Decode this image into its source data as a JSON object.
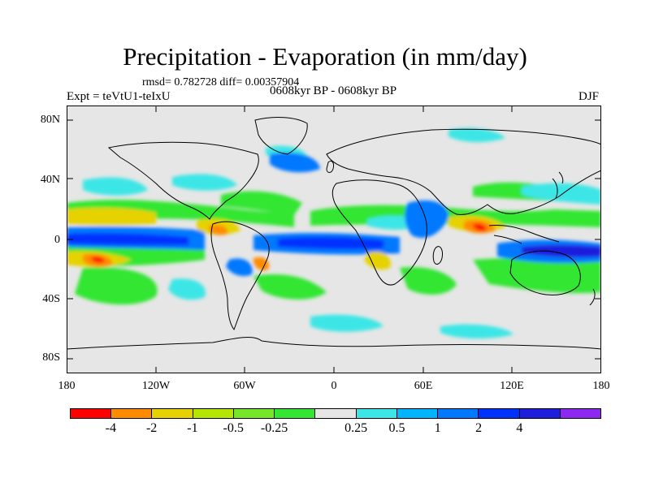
{
  "title": "Precipitation - Evaporation (in mm/day)",
  "stats": "rmsd= 0.782728 diff= 0.00357904",
  "period": "0608kyr BP - 0608kyr BP",
  "experiment": "Expt = teVtU1-teIxU",
  "season": "DJF",
  "map": {
    "y_ticks": [
      "80N",
      "40N",
      "0",
      "40S",
      "80S"
    ],
    "x_ticks": [
      "180",
      "120W",
      "60W",
      "0",
      "60E",
      "120E",
      "180"
    ],
    "background_color": "#e6e6e6",
    "coastline_color": "#000000"
  },
  "colorbar": {
    "colors": [
      "#ff0000",
      "#ff8c00",
      "#e6d200",
      "#b4e600",
      "#78e628",
      "#32e632",
      "#e6e6e6",
      "#3ce6e6",
      "#00b4ff",
      "#0078ff",
      "#0032ff",
      "#1e1edc",
      "#8c28f0"
    ],
    "labels": [
      "-4",
      "-2",
      "-1",
      "-0.5",
      "-0.25",
      "0.25",
      "0.5",
      "1",
      "2",
      "4"
    ]
  }
}
